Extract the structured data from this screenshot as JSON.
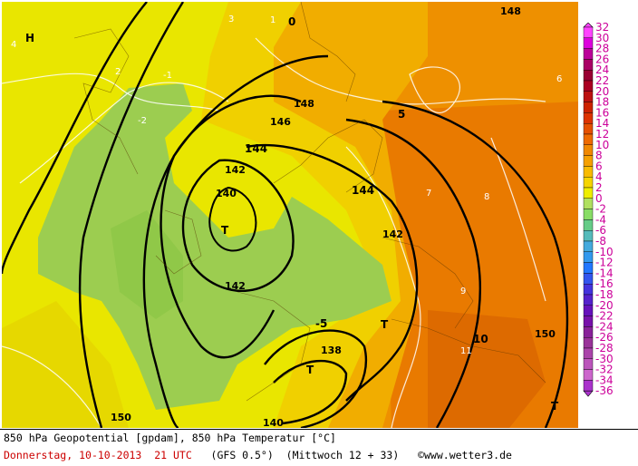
{
  "map": {
    "title": "850 hPa Geopotential [gpdam], 850 hPa Temperatur [°C]",
    "high_label": "H",
    "low_labels": [
      "T",
      "T",
      "T",
      "T"
    ],
    "geopotential_labels": [
      "148",
      "146",
      "144",
      "142",
      "140",
      "138",
      "142",
      "144",
      "148",
      "142",
      "140",
      "150",
      "150"
    ],
    "temperature_labels": [
      "4",
      "3",
      "2",
      "1",
      "0",
      "-1",
      "-2",
      "-5",
      "5",
      "6",
      "7",
      "8",
      "9",
      "10",
      "11"
    ]
  },
  "colorbar": {
    "ticks": [
      "32",
      "30",
      "28",
      "26",
      "24",
      "22",
      "20",
      "18",
      "16",
      "14",
      "12",
      "10",
      "8",
      "6",
      "4",
      "2",
      "0",
      "-2",
      "-4",
      "-6",
      "-8",
      "-10",
      "-12",
      "-14",
      "-16",
      "-18",
      "-20",
      "-22",
      "-24",
      "-26",
      "-28",
      "-30",
      "-32",
      "-34",
      "-36"
    ],
    "colors": [
      "#ff44ff",
      "#dd00dd",
      "#bb0099",
      "#aa0066",
      "#990033",
      "#aa0022",
      "#bb1111",
      "#cc2200",
      "#dd3300",
      "#e55000",
      "#ee6a00",
      "#f08800",
      "#f5a000",
      "#f8bb00",
      "#f5d500",
      "#eeee00",
      "#b0e060",
      "#88dd66",
      "#66cc88",
      "#55bbbb",
      "#44aadd",
      "#3399ee",
      "#2277ff",
      "#3355ee",
      "#4433dd",
      "#5522cc",
      "#6611bb",
      "#7711aa",
      "#882299",
      "#993399",
      "#aa44aa",
      "#bb55bb",
      "#cc66cc",
      "#aa33cc"
    ]
  },
  "caption": {
    "line1": "850 hPa Geopotential [gpdam], 850 hPa Temperatur [°C]",
    "day": "Donnerstag,",
    "date": "10-10-2013",
    "time": "21 UTC",
    "model": "(GFS 0.5°)",
    "valid": "(Mittwoch 12 + 33)",
    "copyright": "©",
    "site": "www.wetter3.de"
  }
}
